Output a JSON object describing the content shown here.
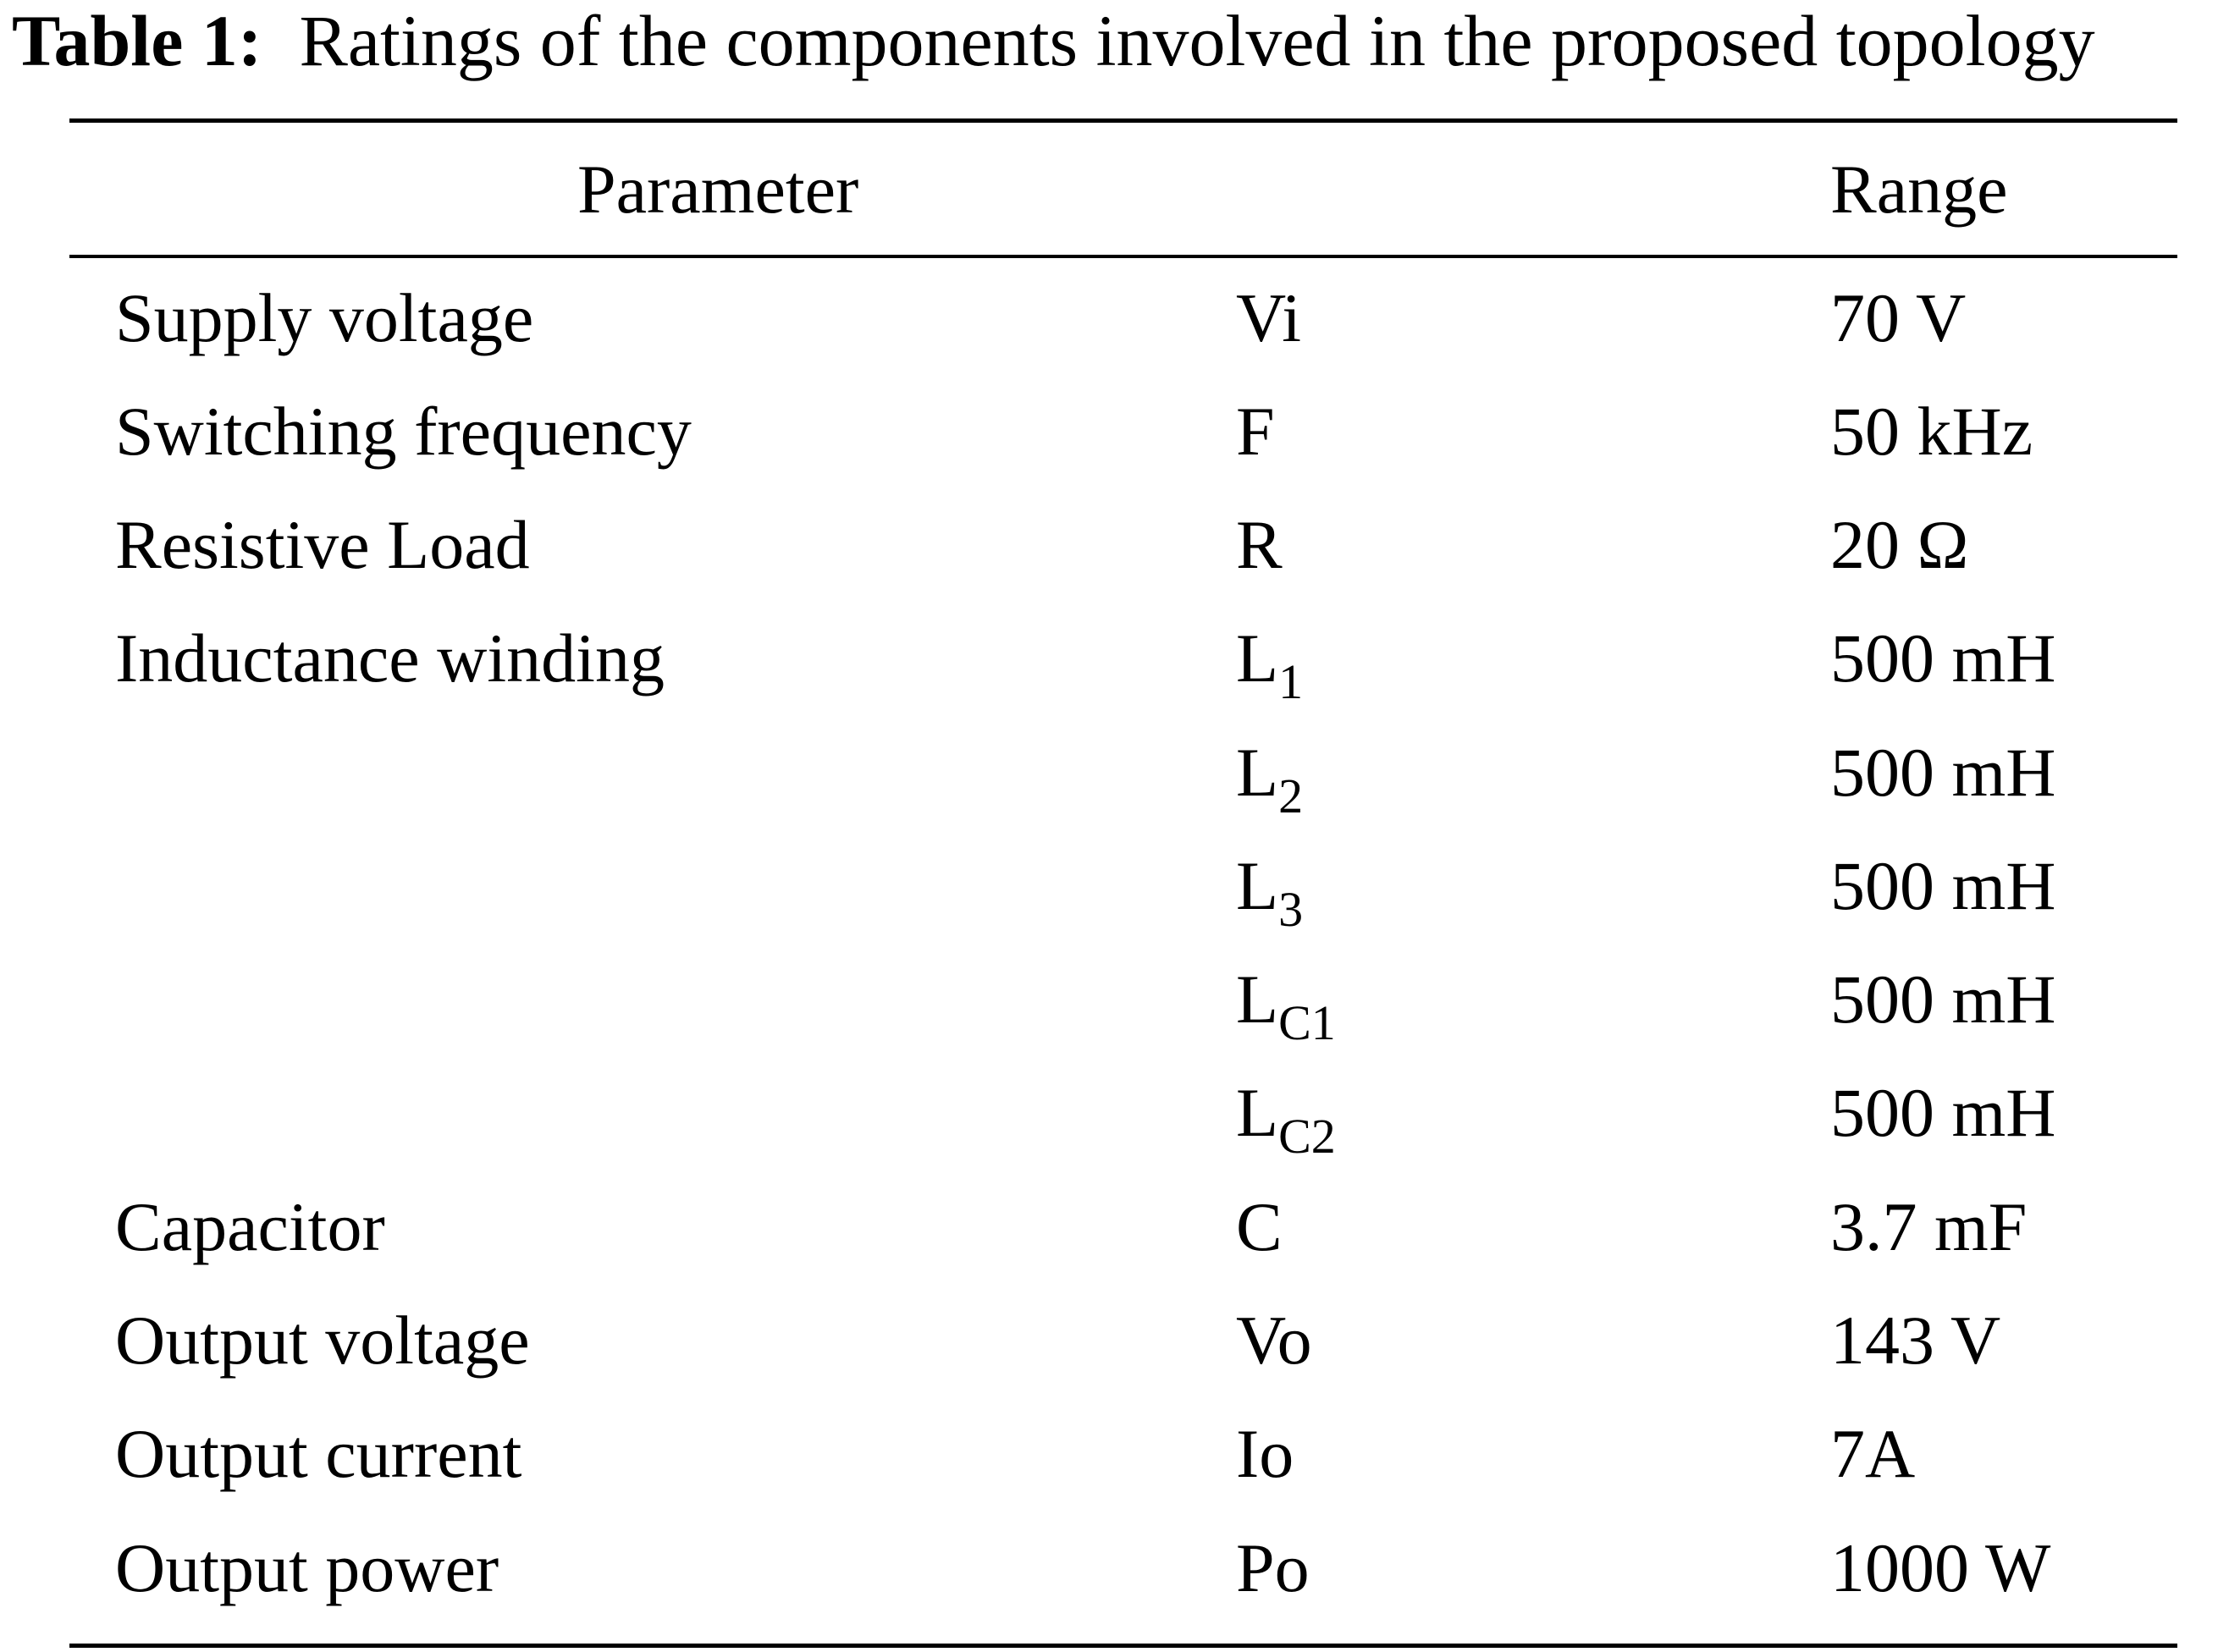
{
  "caption": {
    "label": "Table 1:",
    "text": "Ratings of the components involved in the proposed topology"
  },
  "table": {
    "headers": {
      "parameter": "Parameter",
      "range": "Range"
    },
    "rows": [
      {
        "name": "Supply voltage",
        "symbol": "Vi",
        "symbol_sub": "",
        "value": "70 V"
      },
      {
        "name": "Switching frequency",
        "symbol": "F",
        "symbol_sub": "",
        "value": "50 kHz"
      },
      {
        "name": "Resistive Load",
        "symbol": "R",
        "symbol_sub": "",
        "value": "20 Ω"
      },
      {
        "name": "Inductance winding",
        "symbol": "L",
        "symbol_sub": "1",
        "value": "500 mH"
      },
      {
        "name": "",
        "symbol": "L",
        "symbol_sub": "2",
        "value": "500 mH"
      },
      {
        "name": "",
        "symbol": "L",
        "symbol_sub": "3",
        "value": "500 mH"
      },
      {
        "name": "",
        "symbol": "L",
        "symbol_sub": "C1",
        "value": "500 mH"
      },
      {
        "name": "",
        "symbol": "L",
        "symbol_sub": "C2",
        "value": "500 mH"
      },
      {
        "name": "Capacitor",
        "symbol": "C",
        "symbol_sub": "",
        "value": "3.7 mF"
      },
      {
        "name": "Output voltage",
        "symbol": "Vo",
        "symbol_sub": "",
        "value": "143 V"
      },
      {
        "name": "Output current",
        "symbol": "Io",
        "symbol_sub": "",
        "value": "7A"
      },
      {
        "name": "Output power",
        "symbol": "Po",
        "symbol_sub": "",
        "value": "1000 W"
      }
    ]
  }
}
